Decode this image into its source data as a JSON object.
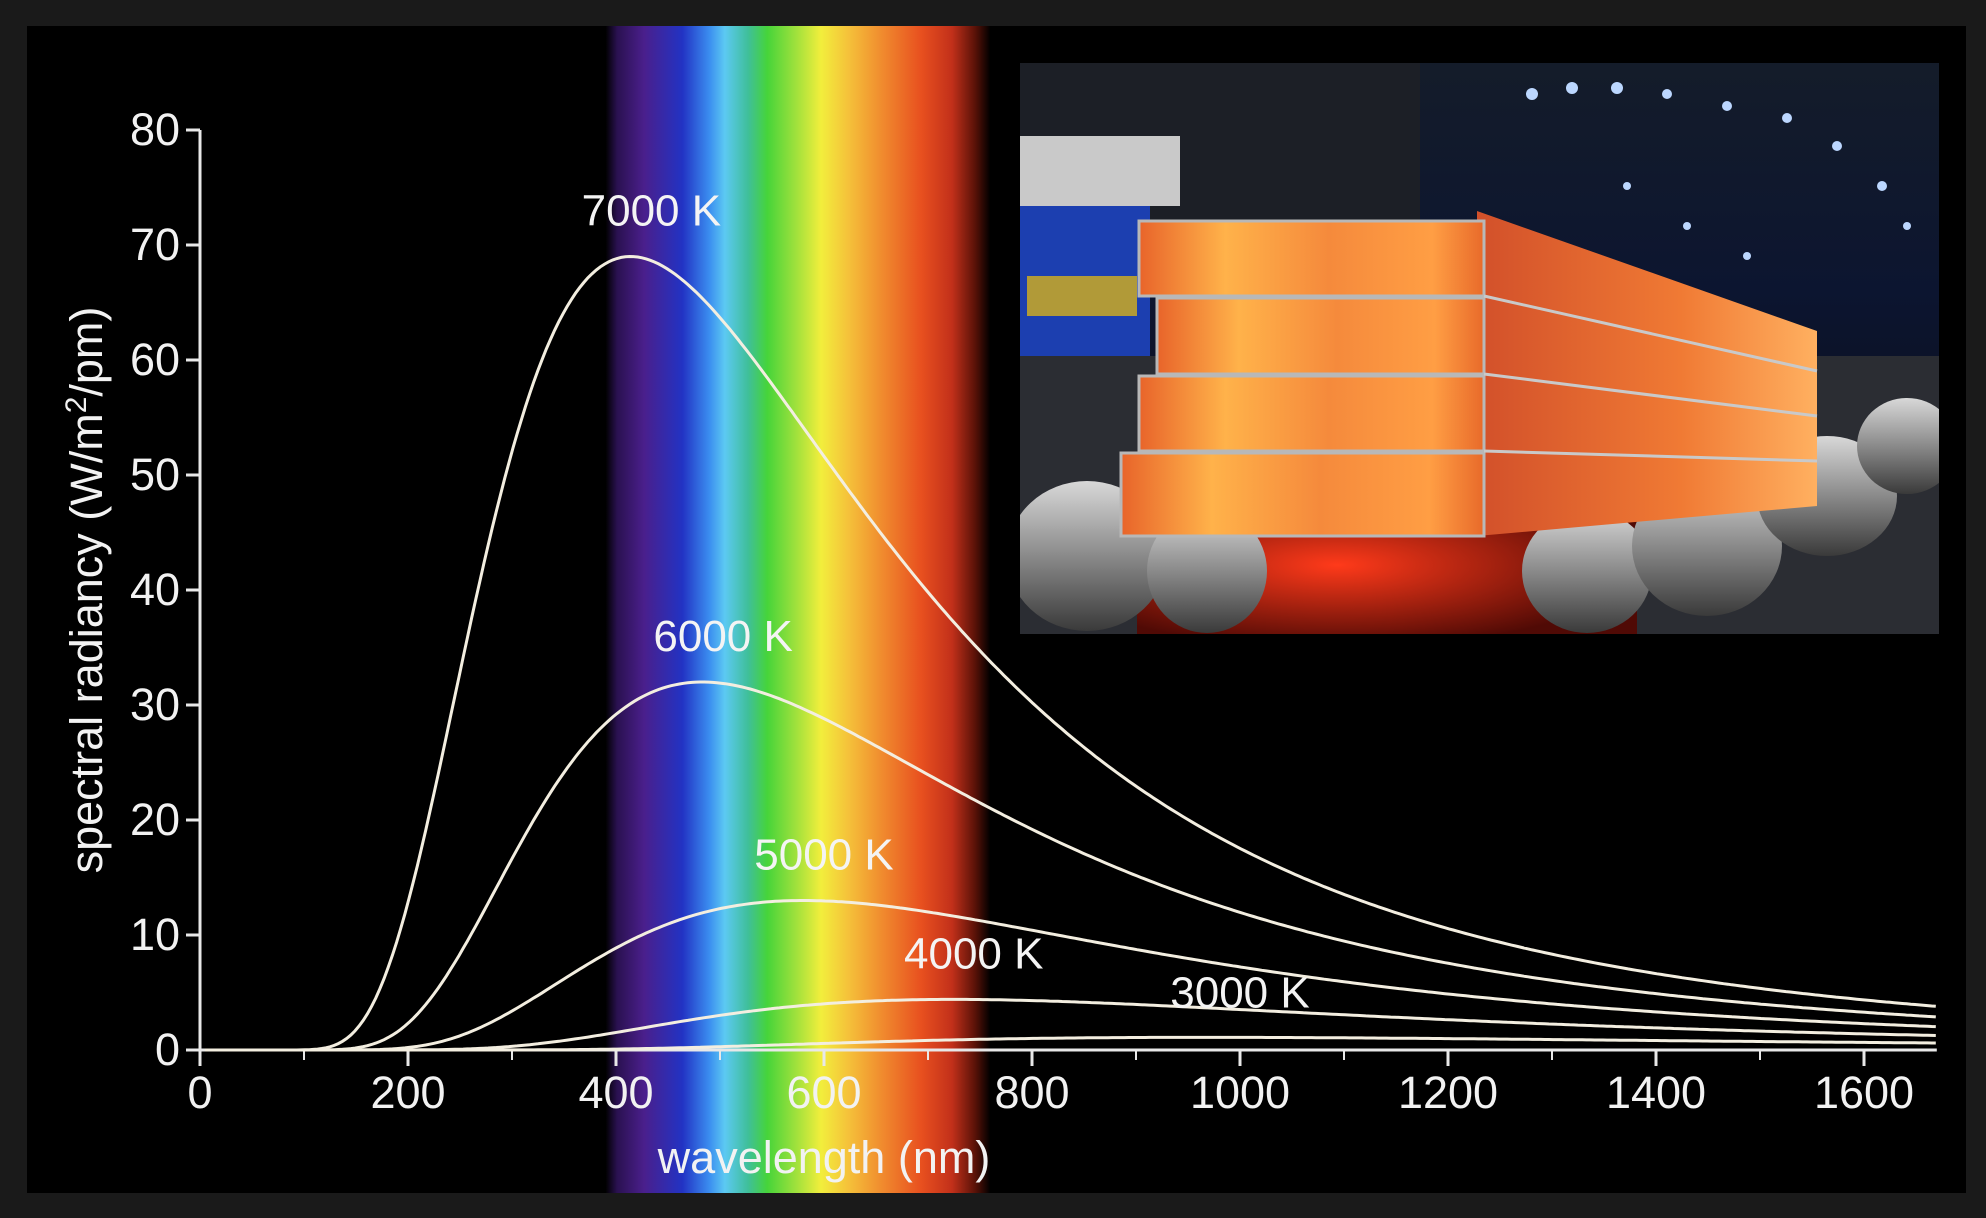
{
  "chart_data": {
    "type": "line",
    "title": "",
    "xlabel": "wavelength (nm)",
    "ylabel_main": "spectral radiancy (W/m",
    "ylabel_sup": "2",
    "ylabel_tail": "/pm)",
    "xlim": [
      0,
      1670
    ],
    "ylim": [
      0,
      80
    ],
    "x_ticks": [
      0,
      200,
      400,
      600,
      800,
      1000,
      1200,
      1400,
      1600
    ],
    "y_ticks": [
      0,
      10,
      20,
      30,
      40,
      50,
      60,
      70,
      80
    ],
    "grid": false,
    "visible_spectrum_nm": [
      390,
      760
    ],
    "series": [
      {
        "name": "7000 K",
        "temperature_K": 7000,
        "peak": {
          "x": 414,
          "y": 69
        }
      },
      {
        "name": "6000 K",
        "temperature_K": 6000,
        "peak": {
          "x": 483,
          "y": 32
        }
      },
      {
        "name": "5000 K",
        "temperature_K": 5000,
        "peak": {
          "x": 580,
          "y": 13
        }
      },
      {
        "name": "4000 K",
        "temperature_K": 4000,
        "peak": {
          "x": 724,
          "y": 4.4
        }
      },
      {
        "name": "3000 K",
        "temperature_K": 3000,
        "peak": {
          "x": 966,
          "y": 1.1
        }
      }
    ],
    "colors": {
      "axis": "#e8e8e8",
      "curve": "#f3eee0",
      "background": "#000000"
    }
  },
  "inset_image": {
    "subject": "glowing hot steel slabs on a rolling mill"
  }
}
